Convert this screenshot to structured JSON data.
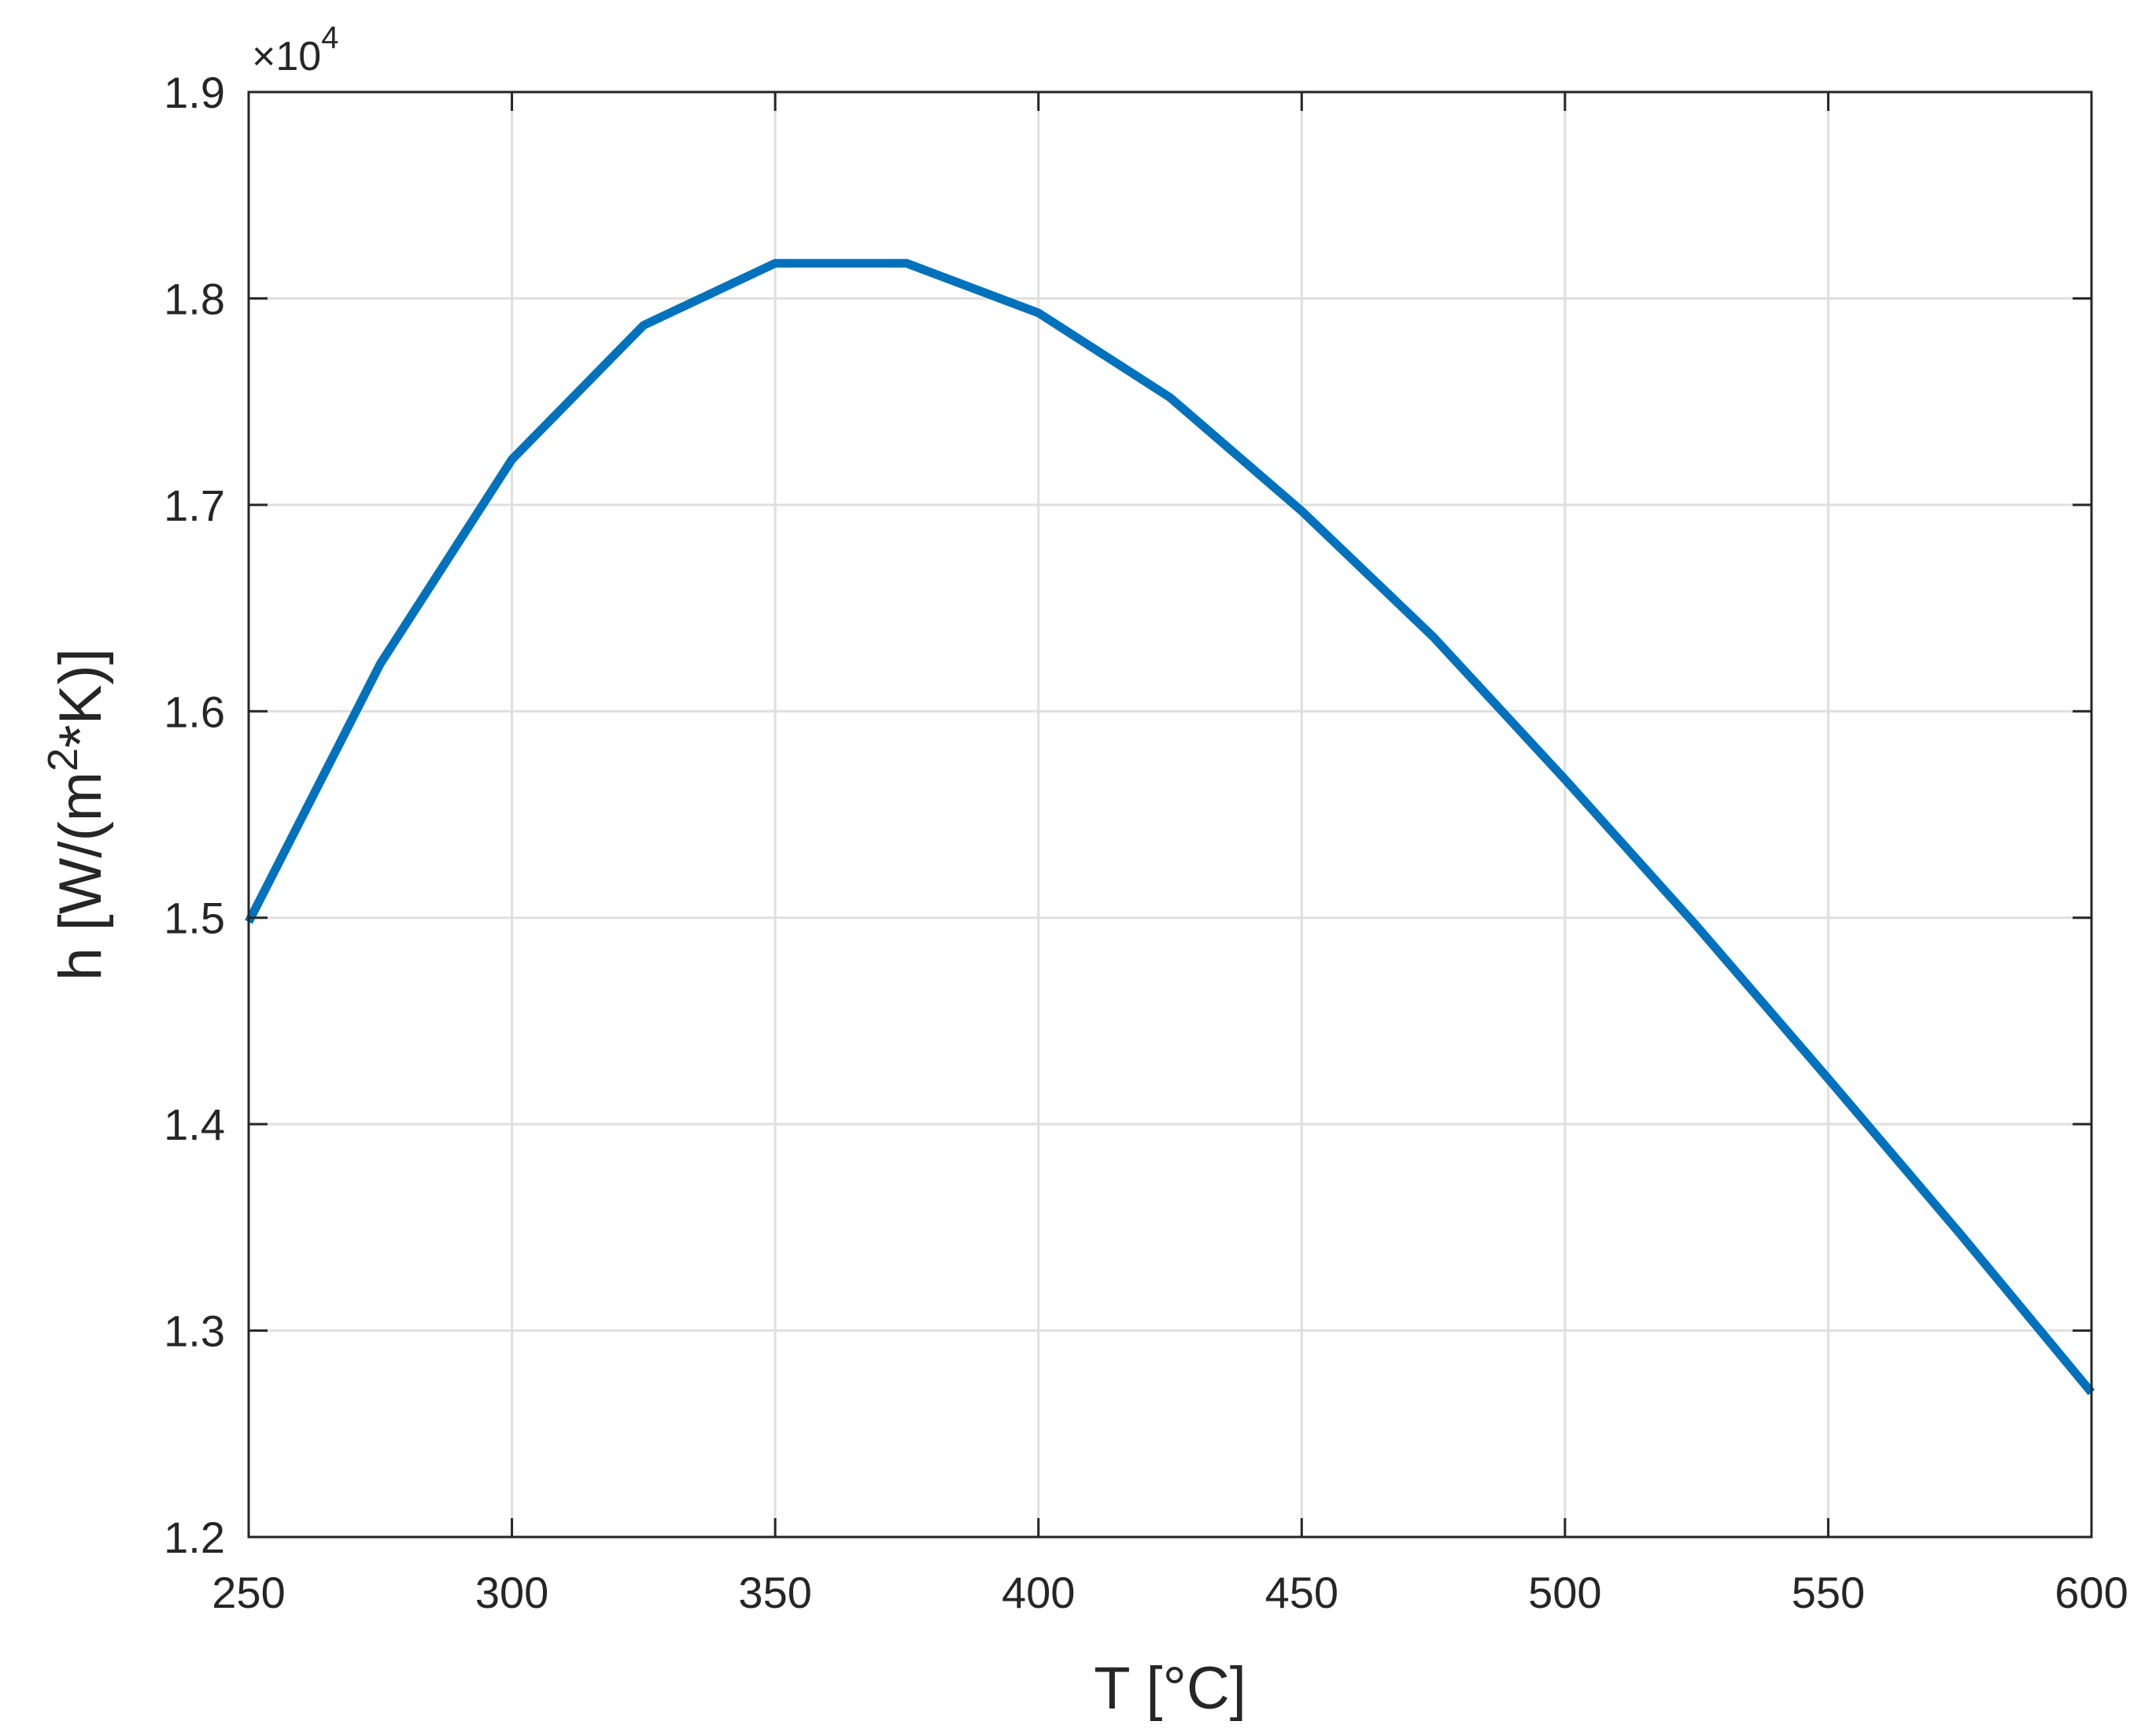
{
  "chart_data": {
    "type": "line",
    "title": "",
    "xlabel": "T [°C]",
    "ylabel": {
      "prefix": "h [W/(m",
      "superscript": "2",
      "suffix": "*K)]"
    },
    "xlim": [
      250,
      600
    ],
    "ylim": [
      12000,
      19000
    ],
    "y_exponent": {
      "prefix": "×10",
      "power": "4"
    },
    "grid": true,
    "xticks": [
      250,
      300,
      350,
      400,
      450,
      500,
      550,
      600
    ],
    "xtick_labels": [
      "250",
      "300",
      "350",
      "400",
      "450",
      "500",
      "550",
      "600"
    ],
    "yticks": [
      12000,
      13000,
      14000,
      15000,
      16000,
      17000,
      18000,
      19000
    ],
    "ytick_labels": [
      "1.2",
      "1.3",
      "1.4",
      "1.5",
      "1.6",
      "1.7",
      "1.8",
      "1.9"
    ],
    "series": [
      {
        "color": "#0072BD",
        "x": [
          250,
          275,
          300,
          325,
          350,
          375,
          400,
          425,
          450,
          475,
          500,
          525,
          550,
          575,
          600
        ],
        "y": [
          14980,
          16230,
          17220,
          17870,
          18170,
          18170,
          17930,
          17520,
          16970,
          16360,
          15670,
          14960,
          14220,
          13470,
          12700
        ]
      }
    ]
  }
}
